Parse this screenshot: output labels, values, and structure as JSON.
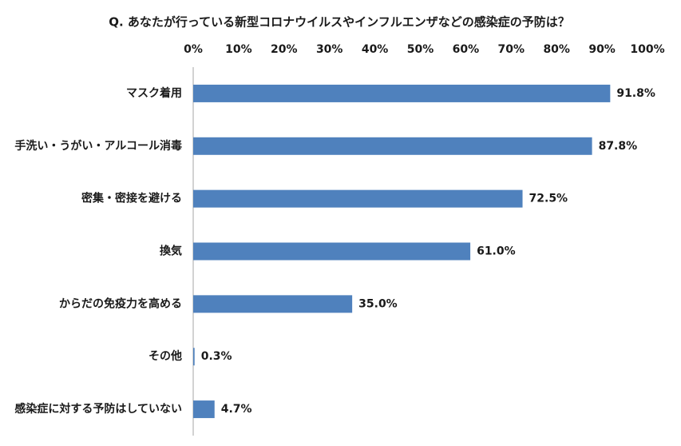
{
  "chart_data": {
    "type": "bar",
    "orientation": "horizontal",
    "title": "Q. あなたが行っている新型コロナウイルスやインフルエンザなどの感染症の予防は？",
    "categories": [
      "マスク着用",
      "手洗い・うがい・アルコール消毒",
      "密集・密接を避ける",
      "換気",
      "からだの免疫力を高める",
      "その他",
      "感染症に対する予防はしていない"
    ],
    "values": [
      91.8,
      87.8,
      72.5,
      61.0,
      35.0,
      0.3,
      4.7
    ],
    "value_labels": [
      "91.8%",
      "87.8%",
      "72.5%",
      "61.0%",
      "35.0%",
      "0.3%",
      "4.7%"
    ],
    "color": "#4f81bd",
    "xlim": [
      0,
      100
    ],
    "xticks": [
      {
        "value": 0,
        "label": "0%"
      },
      {
        "value": 10,
        "label": "10%"
      },
      {
        "value": 20,
        "label": "20%"
      },
      {
        "value": 30,
        "label": "30%"
      },
      {
        "value": 40,
        "label": "40%"
      },
      {
        "value": 50,
        "label": "50%"
      },
      {
        "value": 60,
        "label": "60%"
      },
      {
        "value": 70,
        "label": "70%"
      },
      {
        "value": 80,
        "label": "80%"
      },
      {
        "value": 90,
        "label": "90%"
      },
      {
        "value": 100,
        "label": "100%"
      }
    ],
    "grid": false
  }
}
